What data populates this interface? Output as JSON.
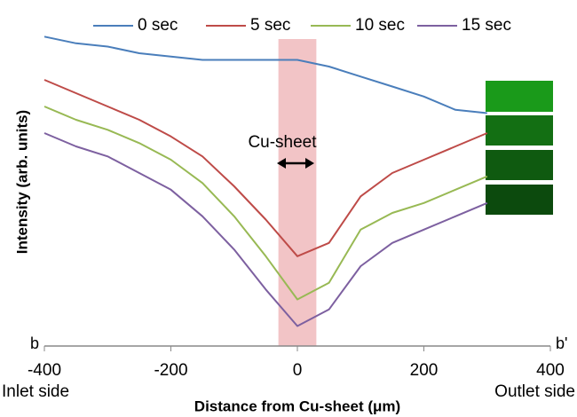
{
  "chart_data": {
    "type": "line",
    "x_label": "Distance from Cu-sheet (μm)",
    "y_label": "Intensity (arb. units)",
    "x": [
      -400,
      -350,
      -300,
      -250,
      -200,
      -150,
      -100,
      -50,
      0,
      50,
      100,
      150,
      200,
      250,
      300
    ],
    "series": [
      {
        "name": "0 sec",
        "color": "#4a7ebb",
        "values": [
          93,
          91,
          90,
          88,
          87,
          86,
          86,
          86,
          86,
          84,
          81,
          78,
          75,
          71,
          70
        ]
      },
      {
        "name": "5 sec",
        "color": "#be4b48",
        "values": [
          80,
          76,
          72,
          68,
          63,
          57,
          48,
          38,
          27,
          31,
          45,
          52,
          56,
          60,
          64
        ]
      },
      {
        "name": "10 sec",
        "color": "#98b954",
        "values": [
          72,
          68,
          65,
          61,
          56,
          49,
          39,
          27,
          14,
          19,
          35,
          40,
          43,
          47,
          51
        ]
      },
      {
        "name": "15 sec",
        "color": "#7d60a0",
        "values": [
          64,
          60,
          57,
          52,
          47,
          39,
          29,
          17,
          6,
          11,
          24,
          31,
          35,
          39,
          43
        ]
      }
    ],
    "xlim": [
      -400,
      400
    ],
    "xticks": [
      -400,
      -200,
      0,
      200,
      400
    ],
    "ylim": [
      0,
      100
    ],
    "highlight_x": [
      -30,
      30
    ],
    "annotations": {
      "cu_sheet": "Cu-sheet",
      "inlet": "Inlet side",
      "outlet": "Outlet side",
      "left_end": "b",
      "right_end": "b'"
    }
  }
}
